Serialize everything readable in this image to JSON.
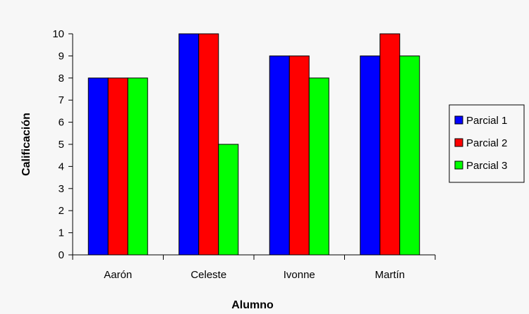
{
  "chart_data": {
    "type": "bar",
    "title": "",
    "xlabel": "Alumno",
    "ylabel": "Calificación",
    "categories": [
      "Aarón",
      "Celeste",
      "Ivonne",
      "Martín"
    ],
    "series": [
      {
        "name": "Parcial 1",
        "color": "#0000ff",
        "values": [
          8,
          10,
          9,
          9
        ]
      },
      {
        "name": "Parcial 2",
        "color": "#ff0000",
        "values": [
          8,
          10,
          9,
          10
        ]
      },
      {
        "name": "Parcial 3",
        "color": "#00ff00",
        "values": [
          8,
          5,
          8,
          9
        ]
      }
    ],
    "ylim": [
      0,
      10
    ],
    "yticks": [
      "0",
      "1",
      "2",
      "3",
      "4",
      "5",
      "6",
      "7",
      "8",
      "9",
      "10"
    ],
    "grid": false,
    "legend_position": "right"
  }
}
